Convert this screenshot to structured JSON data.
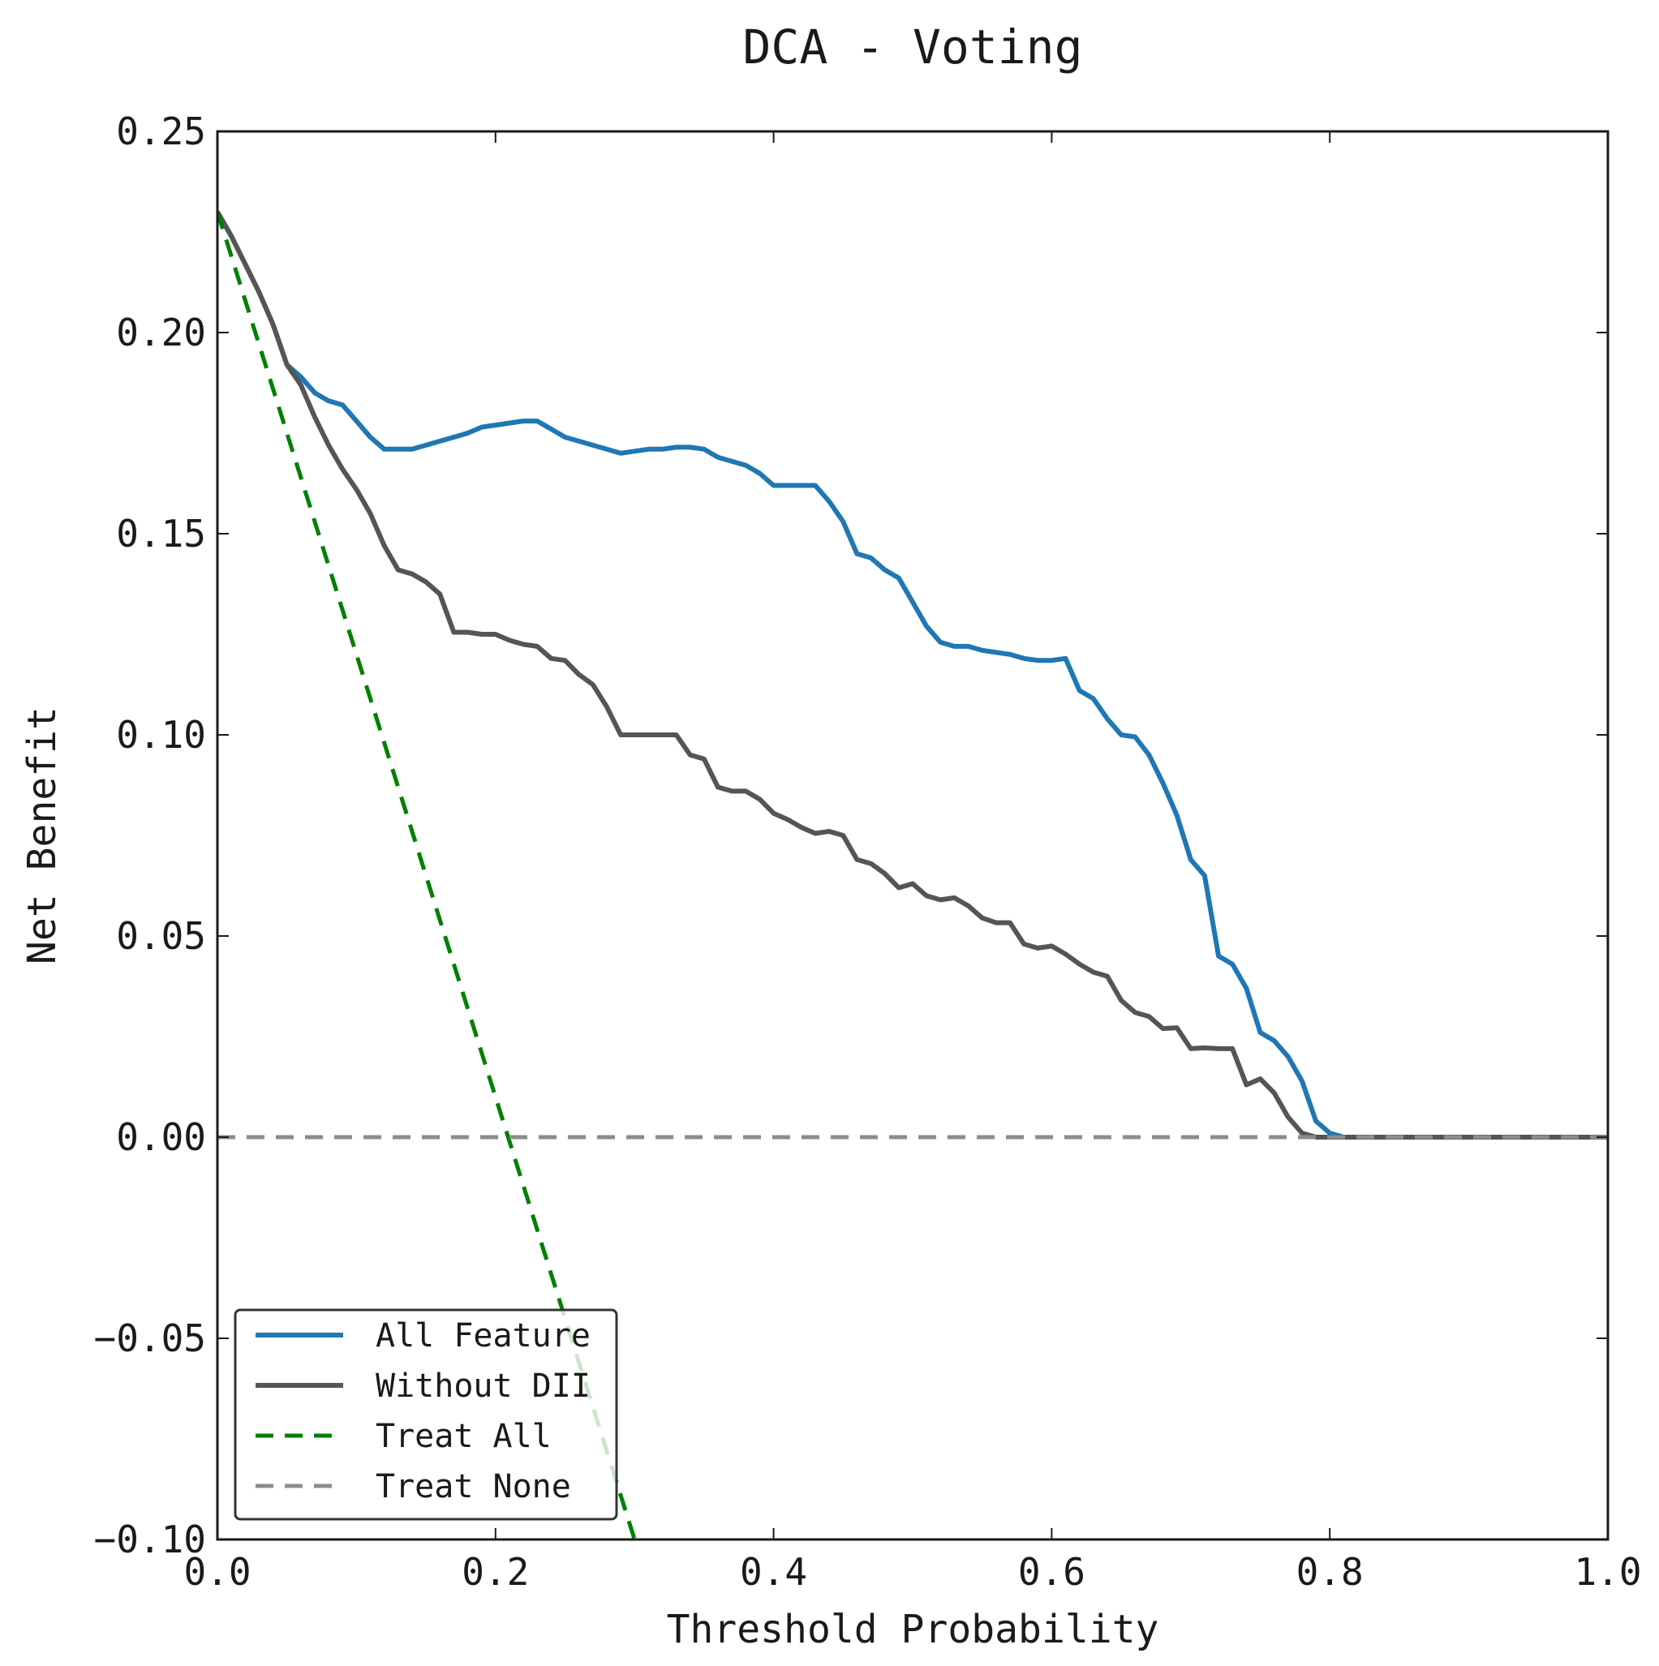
{
  "chart_data": {
    "type": "line",
    "title": "DCA - Voting",
    "xlabel": "Threshold Probability",
    "ylabel": "Net Benefit",
    "xlim": [
      0.0,
      1.0
    ],
    "ylim": [
      -0.1,
      0.25
    ],
    "xticks": [
      0.0,
      0.2,
      0.4,
      0.6,
      0.8,
      1.0
    ],
    "xtick_labels": [
      "0.0",
      "0.2",
      "0.4",
      "0.6",
      "0.8",
      "1.0"
    ],
    "yticks": [
      -0.1,
      -0.05,
      0.0,
      0.05,
      0.1,
      0.15,
      0.2,
      0.25
    ],
    "ytick_labels": [
      "−0.10",
      "−0.05",
      "0.00",
      "0.05",
      "0.10",
      "0.15",
      "0.20",
      "0.25"
    ],
    "grid": false,
    "legend": {
      "placement": "lower-left"
    },
    "series": [
      {
        "name": "All Feature",
        "color": "#1f77b4",
        "style": "solid",
        "points": [
          [
            0.0,
            0.23
          ],
          [
            0.01,
            0.224
          ],
          [
            0.02,
            0.217
          ],
          [
            0.03,
            0.21
          ],
          [
            0.04,
            0.202
          ],
          [
            0.05,
            0.192
          ],
          [
            0.06,
            0.189
          ],
          [
            0.07,
            0.185
          ],
          [
            0.08,
            0.183
          ],
          [
            0.09,
            0.182
          ],
          [
            0.1,
            0.178
          ],
          [
            0.11,
            0.174
          ],
          [
            0.12,
            0.171
          ],
          [
            0.13,
            0.171
          ],
          [
            0.14,
            0.171
          ],
          [
            0.15,
            0.172
          ],
          [
            0.16,
            0.173
          ],
          [
            0.17,
            0.174
          ],
          [
            0.18,
            0.175
          ],
          [
            0.19,
            0.1765
          ],
          [
            0.2,
            0.177
          ],
          [
            0.21,
            0.1775
          ],
          [
            0.22,
            0.178
          ],
          [
            0.23,
            0.178
          ],
          [
            0.24,
            0.176
          ],
          [
            0.25,
            0.174
          ],
          [
            0.26,
            0.173
          ],
          [
            0.27,
            0.172
          ],
          [
            0.28,
            0.171
          ],
          [
            0.29,
            0.17
          ],
          [
            0.3,
            0.1705
          ],
          [
            0.31,
            0.171
          ],
          [
            0.32,
            0.171
          ],
          [
            0.33,
            0.1715
          ],
          [
            0.34,
            0.1715
          ],
          [
            0.35,
            0.171
          ],
          [
            0.36,
            0.169
          ],
          [
            0.37,
            0.168
          ],
          [
            0.38,
            0.167
          ],
          [
            0.39,
            0.165
          ],
          [
            0.4,
            0.162
          ],
          [
            0.41,
            0.162
          ],
          [
            0.42,
            0.162
          ],
          [
            0.43,
            0.162
          ],
          [
            0.44,
            0.158
          ],
          [
            0.45,
            0.153
          ],
          [
            0.46,
            0.145
          ],
          [
            0.47,
            0.144
          ],
          [
            0.48,
            0.141
          ],
          [
            0.49,
            0.139
          ],
          [
            0.5,
            0.133
          ],
          [
            0.51,
            0.127
          ],
          [
            0.52,
            0.123
          ],
          [
            0.53,
            0.122
          ],
          [
            0.54,
            0.122
          ],
          [
            0.55,
            0.121
          ],
          [
            0.56,
            0.1205
          ],
          [
            0.57,
            0.12
          ],
          [
            0.58,
            0.119
          ],
          [
            0.59,
            0.1185
          ],
          [
            0.6,
            0.1185
          ],
          [
            0.61,
            0.119
          ],
          [
            0.62,
            0.111
          ],
          [
            0.63,
            0.109
          ],
          [
            0.64,
            0.104
          ],
          [
            0.65,
            0.1
          ],
          [
            0.66,
            0.0995
          ],
          [
            0.67,
            0.095
          ],
          [
            0.68,
            0.088
          ],
          [
            0.69,
            0.08
          ],
          [
            0.7,
            0.069
          ],
          [
            0.71,
            0.065
          ],
          [
            0.72,
            0.045
          ],
          [
            0.73,
            0.043
          ],
          [
            0.74,
            0.037
          ],
          [
            0.75,
            0.026
          ],
          [
            0.76,
            0.024
          ],
          [
            0.77,
            0.02
          ],
          [
            0.78,
            0.014
          ],
          [
            0.79,
            0.004
          ],
          [
            0.8,
            0.001
          ],
          [
            0.81,
            0.0
          ],
          [
            0.85,
            0.0
          ],
          [
            0.9,
            0.0
          ],
          [
            0.95,
            0.0
          ],
          [
            1.0,
            0.0
          ]
        ]
      },
      {
        "name": "Without DII",
        "color": "#555555",
        "style": "solid",
        "points": [
          [
            0.0,
            0.23
          ],
          [
            0.01,
            0.224
          ],
          [
            0.02,
            0.217
          ],
          [
            0.03,
            0.21
          ],
          [
            0.04,
            0.202
          ],
          [
            0.05,
            0.192
          ],
          [
            0.06,
            0.187
          ],
          [
            0.07,
            0.179
          ],
          [
            0.08,
            0.172
          ],
          [
            0.09,
            0.166
          ],
          [
            0.1,
            0.161
          ],
          [
            0.11,
            0.155
          ],
          [
            0.12,
            0.147
          ],
          [
            0.13,
            0.141
          ],
          [
            0.14,
            0.14
          ],
          [
            0.15,
            0.138
          ],
          [
            0.16,
            0.135
          ],
          [
            0.17,
            0.1255
          ],
          [
            0.18,
            0.1255
          ],
          [
            0.19,
            0.125
          ],
          [
            0.2,
            0.125
          ],
          [
            0.21,
            0.1235
          ],
          [
            0.22,
            0.1225
          ],
          [
            0.23,
            0.122
          ],
          [
            0.24,
            0.119
          ],
          [
            0.25,
            0.1185
          ],
          [
            0.26,
            0.115
          ],
          [
            0.27,
            0.1125
          ],
          [
            0.28,
            0.107
          ],
          [
            0.29,
            0.1
          ],
          [
            0.3,
            0.1
          ],
          [
            0.31,
            0.1
          ],
          [
            0.32,
            0.1
          ],
          [
            0.33,
            0.1
          ],
          [
            0.34,
            0.095
          ],
          [
            0.35,
            0.094
          ],
          [
            0.36,
            0.087
          ],
          [
            0.37,
            0.086
          ],
          [
            0.38,
            0.086
          ],
          [
            0.39,
            0.084
          ],
          [
            0.4,
            0.0805
          ],
          [
            0.41,
            0.079
          ],
          [
            0.42,
            0.077
          ],
          [
            0.43,
            0.0755
          ],
          [
            0.44,
            0.076
          ],
          [
            0.45,
            0.075
          ],
          [
            0.46,
            0.069
          ],
          [
            0.47,
            0.068
          ],
          [
            0.48,
            0.0655
          ],
          [
            0.49,
            0.062
          ],
          [
            0.5,
            0.063
          ],
          [
            0.51,
            0.06
          ],
          [
            0.52,
            0.059
          ],
          [
            0.53,
            0.0595
          ],
          [
            0.54,
            0.0575
          ],
          [
            0.55,
            0.0545
          ],
          [
            0.56,
            0.0533
          ],
          [
            0.57,
            0.0533
          ],
          [
            0.58,
            0.048
          ],
          [
            0.59,
            0.047
          ],
          [
            0.6,
            0.0475
          ],
          [
            0.61,
            0.0455
          ],
          [
            0.62,
            0.043
          ],
          [
            0.63,
            0.041
          ],
          [
            0.64,
            0.04
          ],
          [
            0.65,
            0.034
          ],
          [
            0.66,
            0.031
          ],
          [
            0.67,
            0.03
          ],
          [
            0.68,
            0.027
          ],
          [
            0.69,
            0.0272
          ],
          [
            0.7,
            0.022
          ],
          [
            0.71,
            0.0222
          ],
          [
            0.72,
            0.022
          ],
          [
            0.73,
            0.022
          ],
          [
            0.74,
            0.013
          ],
          [
            0.75,
            0.0145
          ],
          [
            0.76,
            0.011
          ],
          [
            0.77,
            0.005
          ],
          [
            0.78,
            0.001
          ],
          [
            0.79,
            0.0
          ],
          [
            0.85,
            0.0
          ],
          [
            0.9,
            0.0
          ],
          [
            0.95,
            0.0
          ],
          [
            1.0,
            0.0
          ]
        ]
      },
      {
        "name": "Treat All",
        "color": "#008000",
        "style": "dashed",
        "points": [
          [
            0.0,
            0.23
          ],
          [
            0.3,
            -0.1
          ]
        ]
      },
      {
        "name": "Treat None",
        "color": "#8c8c8c",
        "style": "dashed",
        "points": [
          [
            0.0,
            0.0
          ],
          [
            1.0,
            0.0
          ]
        ]
      }
    ]
  }
}
